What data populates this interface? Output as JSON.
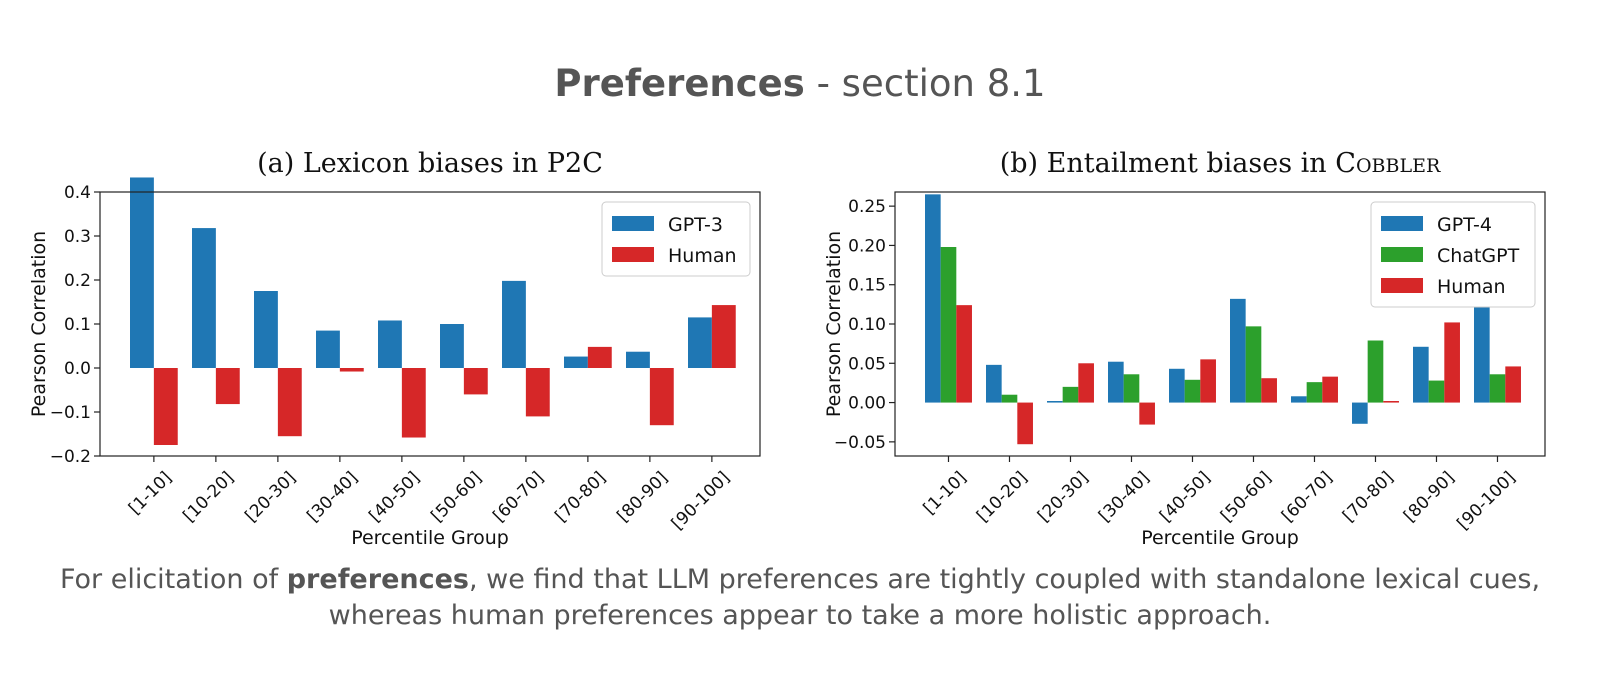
{
  "slide": {
    "title_bold": "Preferences",
    "title_rest": " - section 8.1",
    "caption_pre": "For elicitation of ",
    "caption_bold": "preferences",
    "caption_post": ", we find that LLM preferences are tightly coupled with standalone lexical cues,",
    "caption_line2": "whereas human preferences appear to take a more holistic approach."
  },
  "chart_data": [
    {
      "type": "bar",
      "title_main": "(a) Lexicon biases in P2C",
      "title_sc": "",
      "xlabel": "Percentile Group",
      "ylabel": "Pearson Correlation",
      "ylim": [
        -0.2,
        0.4
      ],
      "yticks": [
        -0.2,
        -0.1,
        0.0,
        0.1,
        0.2,
        0.3,
        0.4
      ],
      "ytick_labels": [
        "−0.2",
        "−0.1",
        "0.0",
        "0.1",
        "0.2",
        "0.3",
        "0.4"
      ],
      "legend_position": "top-right",
      "categories": [
        "[1-10]",
        "[10-20]",
        "[20-30]",
        "[30-40]",
        "[40-50]",
        "[50-60]",
        "[60-70]",
        "[70-80]",
        "[80-90]",
        "[90-100]"
      ],
      "series": [
        {
          "name": "GPT-3",
          "color": "#1f77b4",
          "values": [
            0.433,
            0.318,
            0.175,
            0.085,
            0.108,
            0.1,
            0.198,
            0.026,
            0.037,
            0.115
          ]
        },
        {
          "name": "Human",
          "color": "#d62728",
          "values": [
            -0.175,
            -0.082,
            -0.155,
            -0.008,
            -0.158,
            -0.06,
            -0.11,
            0.048,
            -0.13,
            0.143
          ]
        }
      ]
    },
    {
      "type": "bar",
      "title_main": "(b) Entailment biases in C",
      "title_sc": "obbler",
      "xlabel": "Percentile Group",
      "ylabel": "Pearson Correlation",
      "ylim": [
        -0.068,
        0.268
      ],
      "yticks": [
        -0.05,
        0.0,
        0.05,
        0.1,
        0.15,
        0.2,
        0.25
      ],
      "ytick_labels": [
        "−0.05",
        "0.00",
        "0.05",
        "0.10",
        "0.15",
        "0.20",
        "0.25"
      ],
      "legend_position": "top-right",
      "categories": [
        "[1-10]",
        "[10-20]",
        "[20-30]",
        "[30-40]",
        "[40-50]",
        "[50-60]",
        "[60-70]",
        "[70-80]",
        "[80-90]",
        "[90-100]"
      ],
      "series": [
        {
          "name": "GPT-4",
          "color": "#1f77b4",
          "values": [
            0.265,
            0.048,
            0.002,
            0.052,
            0.043,
            0.132,
            0.008,
            -0.027,
            0.071,
            0.128
          ]
        },
        {
          "name": "ChatGPT",
          "color": "#2ca02c",
          "values": [
            0.198,
            0.01,
            0.02,
            0.036,
            0.029,
            0.097,
            0.026,
            0.079,
            0.028,
            0.036
          ]
        },
        {
          "name": "Human",
          "color": "#d62728",
          "values": [
            0.124,
            -0.053,
            0.05,
            -0.028,
            0.055,
            0.031,
            0.033,
            0.002,
            0.102,
            0.046
          ]
        }
      ]
    }
  ]
}
